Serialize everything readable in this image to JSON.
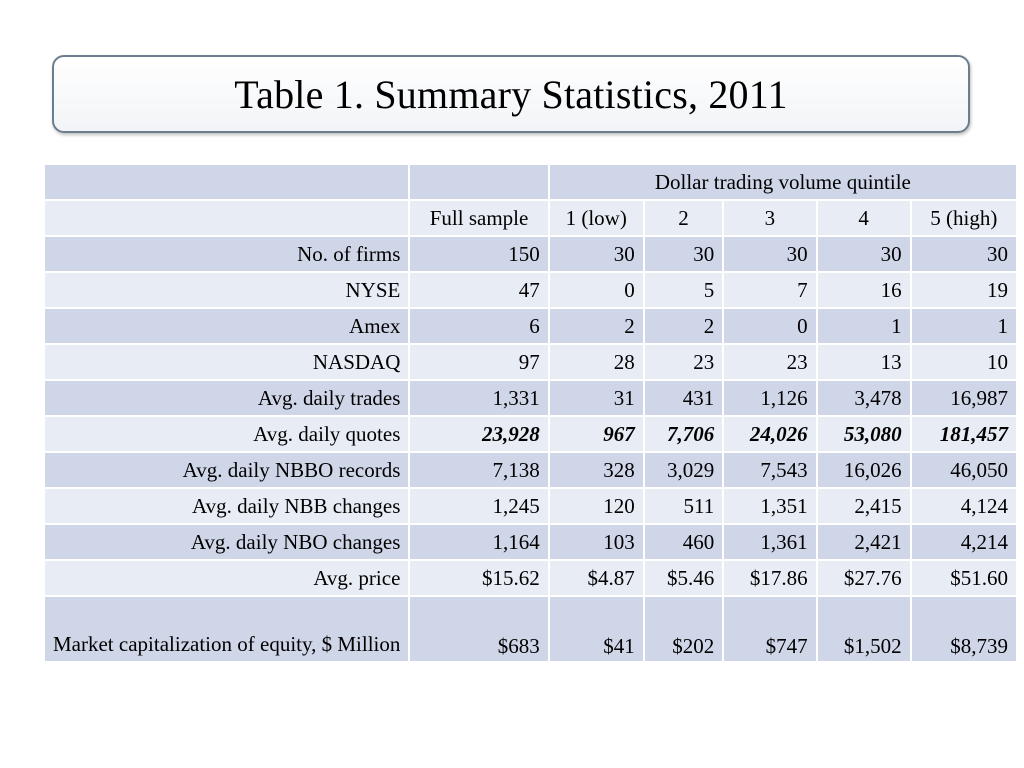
{
  "title": "Table 1. Summary Statistics, 2011",
  "table": {
    "group_header": "Dollar trading volume quintile",
    "columns": [
      "Full sample",
      "1 (low)",
      "2",
      "3",
      "4",
      "5 (high)"
    ],
    "rows": [
      {
        "label": "No. of firms",
        "values": [
          "150",
          "30",
          "30",
          "30",
          "30",
          "30"
        ]
      },
      {
        "label": "NYSE",
        "values": [
          "47",
          "0",
          "5",
          "7",
          "16",
          "19"
        ]
      },
      {
        "label": "Amex",
        "values": [
          "6",
          "2",
          "2",
          "0",
          "1",
          "1"
        ]
      },
      {
        "label": "NASDAQ",
        "values": [
          "97",
          "28",
          "23",
          "23",
          "13",
          "10"
        ]
      },
      {
        "label": "Avg. daily trades",
        "values": [
          "1,331",
          "31",
          "431",
          "1,126",
          "3,478",
          "16,987"
        ]
      },
      {
        "label": "Avg. daily quotes",
        "values": [
          "23,928",
          "967",
          "7,706",
          "24,026",
          "53,080",
          "181,457"
        ]
      },
      {
        "label": "Avg. daily NBBO records",
        "values": [
          "7,138",
          "328",
          "3,029",
          "7,543",
          "16,026",
          "46,050"
        ]
      },
      {
        "label": "Avg. daily NBB changes",
        "values": [
          "1,245",
          "120",
          "511",
          "1,351",
          "2,415",
          "4,124"
        ]
      },
      {
        "label": "Avg. daily NBO changes",
        "values": [
          "1,164",
          "103",
          "460",
          "1,361",
          "2,421",
          "4,214"
        ]
      },
      {
        "label": "Avg. price",
        "values": [
          "$15.62",
          "$4.87",
          "$5.46",
          "$17.86",
          "$27.76",
          "$51.60"
        ]
      },
      {
        "label": "Market capitalization of equity, $ Million",
        "values": [
          "$683",
          "$41",
          "$202",
          "$747",
          "$1,502",
          "$8,739"
        ]
      }
    ]
  },
  "colors": {
    "row_dark": "#cfd6e8",
    "row_light": "#e8ecf5",
    "title_border": "#6b7d8f"
  }
}
